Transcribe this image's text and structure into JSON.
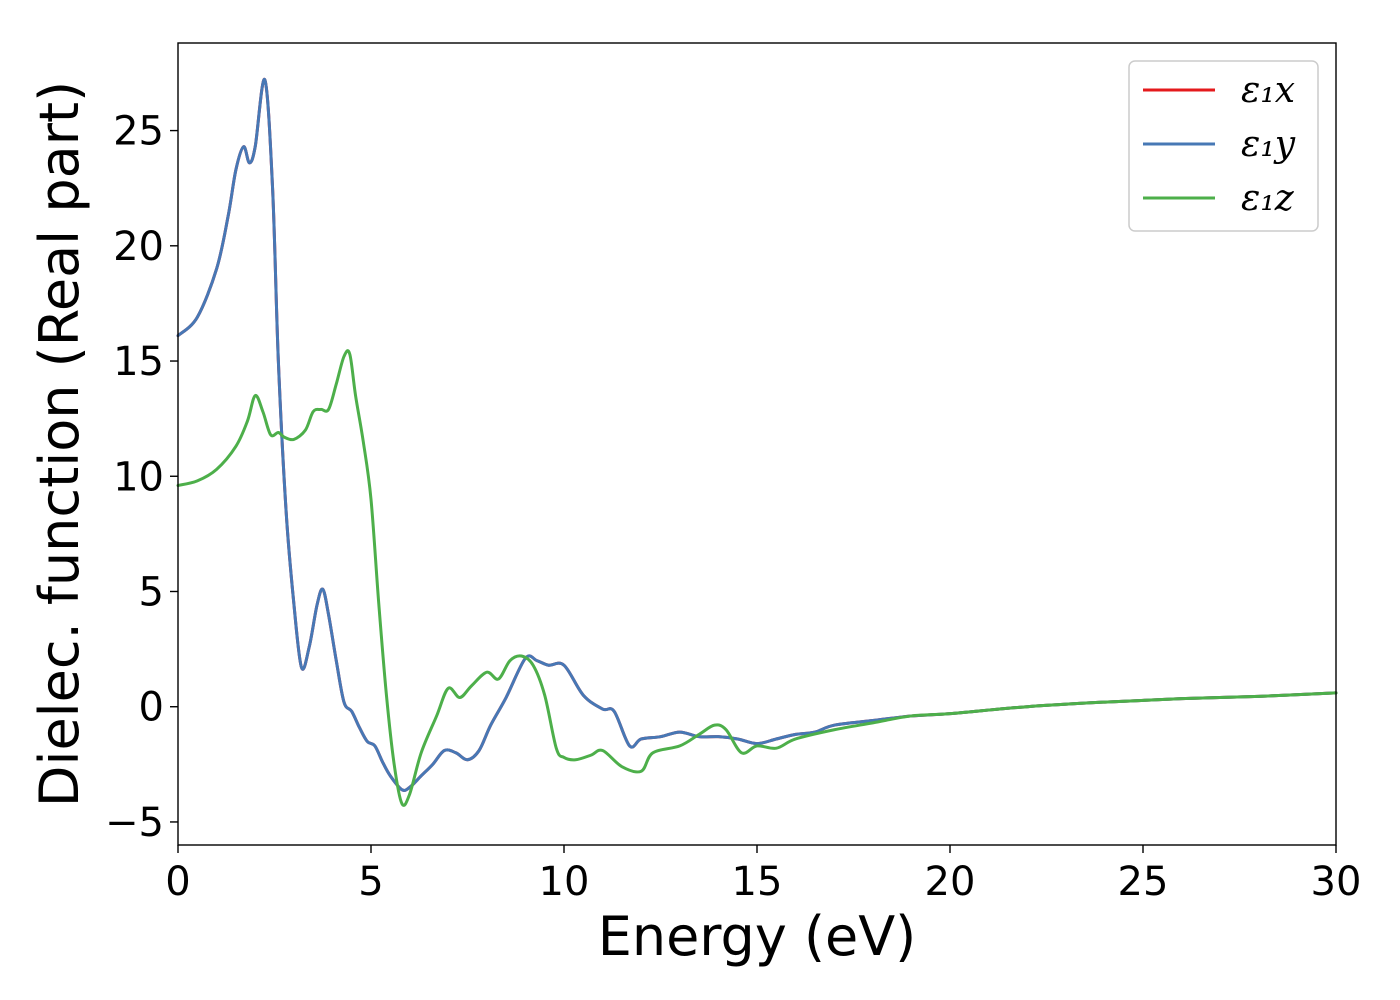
{
  "chart_data": {
    "type": "line",
    "title": "",
    "xlabel": "Energy (eV)",
    "ylabel": "Dielec. function (Real part)",
    "xlim": [
      0,
      30
    ],
    "ylim": [
      -6,
      28.8
    ],
    "xticks": [
      0,
      5,
      10,
      15,
      20,
      25,
      30
    ],
    "yticks": [
      -5,
      0,
      5,
      10,
      15,
      20,
      25
    ],
    "xtick_labels": [
      "0",
      "5",
      "10",
      "15",
      "20",
      "25",
      "30"
    ],
    "ytick_labels": [
      "−5",
      "0",
      "5",
      "10",
      "15",
      "20",
      "25"
    ],
    "grid": false,
    "legend_position": "top-right",
    "series": [
      {
        "name": "ε₁x",
        "color": "#e41a1c",
        "x": [
          0,
          0.5,
          1.0,
          1.3,
          1.5,
          1.7,
          1.85,
          2.0,
          2.25,
          2.45,
          2.6,
          2.8,
          3.0,
          3.2,
          3.4,
          3.6,
          3.75,
          3.9,
          4.1,
          4.3,
          4.5,
          4.7,
          4.9,
          5.1,
          5.3,
          5.5,
          5.8,
          6.0,
          6.3,
          6.6,
          6.9,
          7.2,
          7.5,
          7.8,
          8.1,
          8.5,
          9.0,
          9.3,
          9.6,
          10.0,
          10.5,
          11.0,
          11.3,
          11.7,
          12.0,
          12.5,
          13.0,
          13.5,
          14.0,
          14.5,
          15.0,
          15.5,
          16.0,
          16.5,
          17.0,
          18.0,
          19.0,
          20.0,
          22.0,
          24.0,
          26.0,
          28.0,
          30.0
        ],
        "y": [
          16.1,
          16.9,
          19.0,
          21.3,
          23.3,
          24.3,
          23.6,
          24.3,
          27.2,
          22.5,
          15.0,
          8.5,
          4.5,
          1.7,
          2.6,
          4.4,
          5.1,
          4.0,
          2.0,
          0.2,
          -0.2,
          -0.9,
          -1.5,
          -1.7,
          -2.4,
          -3.0,
          -3.6,
          -3.5,
          -3.0,
          -2.5,
          -1.9,
          -2.0,
          -2.3,
          -1.9,
          -0.8,
          0.4,
          2.1,
          2.0,
          1.8,
          1.8,
          0.5,
          -0.1,
          -0.2,
          -1.7,
          -1.4,
          -1.3,
          -1.1,
          -1.3,
          -1.3,
          -1.4,
          -1.6,
          -1.4,
          -1.2,
          -1.1,
          -0.8,
          -0.6,
          -0.4,
          -0.3,
          0.0,
          0.2,
          0.35,
          0.45,
          0.6
        ]
      },
      {
        "name": "ε₁y",
        "color": "#4778b5",
        "x": [
          0,
          0.5,
          1.0,
          1.3,
          1.5,
          1.7,
          1.85,
          2.0,
          2.25,
          2.45,
          2.6,
          2.8,
          3.0,
          3.2,
          3.4,
          3.6,
          3.75,
          3.9,
          4.1,
          4.3,
          4.5,
          4.7,
          4.9,
          5.1,
          5.3,
          5.5,
          5.8,
          6.0,
          6.3,
          6.6,
          6.9,
          7.2,
          7.5,
          7.8,
          8.1,
          8.5,
          9.0,
          9.3,
          9.6,
          10.0,
          10.5,
          11.0,
          11.3,
          11.7,
          12.0,
          12.5,
          13.0,
          13.5,
          14.0,
          14.5,
          15.0,
          15.5,
          16.0,
          16.5,
          17.0,
          18.0,
          19.0,
          20.0,
          22.0,
          24.0,
          26.0,
          28.0,
          30.0
        ],
        "y": [
          16.1,
          16.9,
          19.0,
          21.3,
          23.3,
          24.3,
          23.6,
          24.3,
          27.2,
          22.5,
          15.0,
          8.5,
          4.5,
          1.7,
          2.6,
          4.4,
          5.1,
          4.0,
          2.0,
          0.2,
          -0.2,
          -0.9,
          -1.5,
          -1.7,
          -2.4,
          -3.0,
          -3.6,
          -3.5,
          -3.0,
          -2.5,
          -1.9,
          -2.0,
          -2.3,
          -1.9,
          -0.8,
          0.4,
          2.1,
          2.0,
          1.8,
          1.8,
          0.5,
          -0.1,
          -0.2,
          -1.7,
          -1.4,
          -1.3,
          -1.1,
          -1.3,
          -1.3,
          -1.4,
          -1.6,
          -1.4,
          -1.2,
          -1.1,
          -0.8,
          -0.6,
          -0.4,
          -0.3,
          0.0,
          0.2,
          0.35,
          0.45,
          0.6
        ]
      },
      {
        "name": "ε₁z",
        "color": "#4daf4a",
        "x": [
          0,
          0.5,
          1.0,
          1.5,
          1.8,
          2.0,
          2.2,
          2.4,
          2.6,
          2.75,
          3.0,
          3.3,
          3.5,
          3.7,
          3.9,
          4.1,
          4.3,
          4.45,
          4.6,
          4.8,
          5.0,
          5.2,
          5.4,
          5.6,
          5.8,
          6.0,
          6.3,
          6.7,
          7.0,
          7.3,
          7.6,
          8.0,
          8.3,
          8.6,
          8.9,
          9.2,
          9.5,
          9.8,
          10.0,
          10.3,
          10.7,
          11.0,
          11.5,
          12.0,
          12.3,
          13.0,
          13.5,
          13.9,
          14.2,
          14.6,
          15.0,
          15.5,
          16.0,
          17.0,
          18.0,
          19.0,
          20.0,
          22.0,
          24.0,
          26.0,
          28.0,
          30.0
        ],
        "y": [
          9.6,
          9.8,
          10.3,
          11.3,
          12.4,
          13.5,
          12.8,
          11.8,
          11.9,
          11.7,
          11.6,
          12.0,
          12.8,
          12.9,
          12.9,
          14.0,
          15.2,
          15.3,
          13.5,
          11.5,
          9.0,
          4.5,
          0.5,
          -2.5,
          -4.2,
          -3.8,
          -2.0,
          -0.4,
          0.8,
          0.4,
          0.9,
          1.5,
          1.2,
          2.0,
          2.2,
          1.8,
          0.5,
          -1.8,
          -2.2,
          -2.3,
          -2.1,
          -1.9,
          -2.6,
          -2.8,
          -2.0,
          -1.7,
          -1.2,
          -0.8,
          -1.0,
          -2.0,
          -1.7,
          -1.8,
          -1.4,
          -1.0,
          -0.7,
          -0.4,
          -0.3,
          0.0,
          0.2,
          0.35,
          0.45,
          0.6
        ]
      }
    ]
  }
}
